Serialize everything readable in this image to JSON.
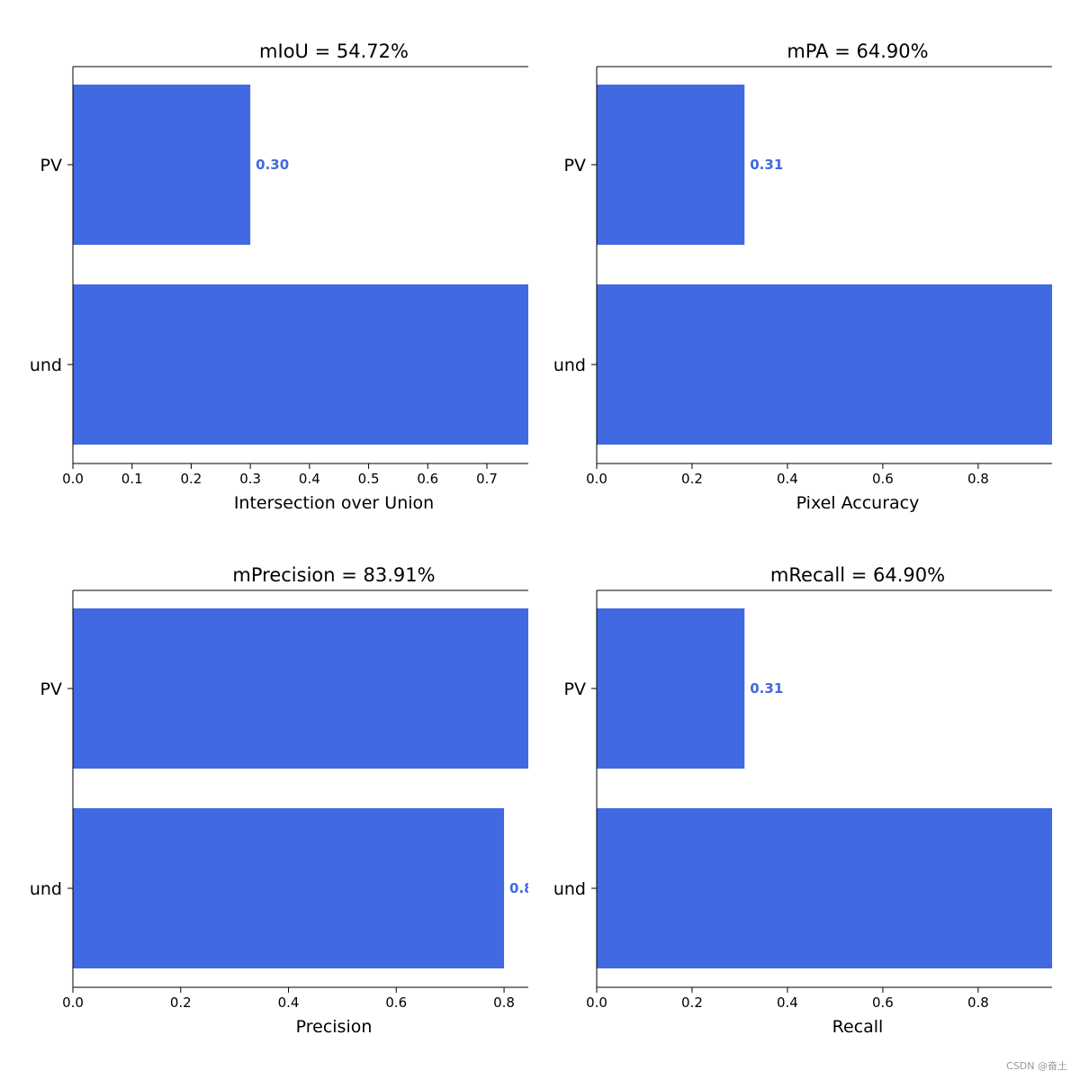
{
  "watermark": "CSDN @奋土",
  "colors": {
    "bar": "#4169e1",
    "label": "#4169e1",
    "axis": "#000000",
    "text": "#000000"
  },
  "chart_data": [
    {
      "type": "bar",
      "orientation": "horizontal",
      "title": "mIoU = 54.72%",
      "xlabel": "Intersection over Union",
      "ylabel": "",
      "categories": [
        "PV",
        "_background_"
      ],
      "category_tick_labels": [
        "PV",
        "und"
      ],
      "values": [
        0.3,
        0.79
      ],
      "value_labels": [
        "0.30",
        ""
      ],
      "xlim": [
        0,
        0.77
      ],
      "xticks": [
        0.0,
        0.1,
        0.2,
        0.3,
        0.4,
        0.5,
        0.6,
        0.7
      ],
      "xtick_labels": [
        "0.0",
        "0.1",
        "0.2",
        "0.3",
        "0.4",
        "0.5",
        "0.6",
        "0.7"
      ]
    },
    {
      "type": "bar",
      "orientation": "horizontal",
      "title": "mPA = 64.90%",
      "xlabel": "Pixel Accuracy",
      "ylabel": "",
      "categories": [
        "PV",
        "_background_"
      ],
      "category_tick_labels": [
        "PV",
        "und"
      ],
      "values": [
        0.31,
        0.99
      ],
      "value_labels": [
        "0.31",
        ""
      ],
      "xlim": [
        0,
        0.955
      ],
      "xticks": [
        0.0,
        0.2,
        0.4,
        0.6,
        0.8
      ],
      "xtick_labels": [
        "0.0",
        "0.2",
        "0.4",
        "0.6",
        "0.8"
      ]
    },
    {
      "type": "bar",
      "orientation": "horizontal",
      "title": "mPrecision = 83.91%",
      "xlabel": "Precision",
      "ylabel": "",
      "categories": [
        "PV",
        "_background_"
      ],
      "category_tick_labels": [
        "PV",
        "und"
      ],
      "values": [
        0.87,
        0.8
      ],
      "value_labels": [
        "",
        "0.8"
      ],
      "xlim": [
        0,
        0.845
      ],
      "xticks": [
        0.0,
        0.2,
        0.4,
        0.6,
        0.8
      ],
      "xtick_labels": [
        "0.0",
        "0.2",
        "0.4",
        "0.6",
        "0.8"
      ]
    },
    {
      "type": "bar",
      "orientation": "horizontal",
      "title": "mRecall = 64.90%",
      "xlabel": "Recall",
      "ylabel": "",
      "categories": [
        "PV",
        "_background_"
      ],
      "category_tick_labels": [
        "PV",
        "und"
      ],
      "values": [
        0.31,
        0.99
      ],
      "value_labels": [
        "0.31",
        ""
      ],
      "xlim": [
        0,
        0.955
      ],
      "xticks": [
        0.0,
        0.2,
        0.4,
        0.6,
        0.8
      ],
      "xtick_labels": [
        "0.0",
        "0.2",
        "0.4",
        "0.6",
        "0.8"
      ]
    }
  ]
}
